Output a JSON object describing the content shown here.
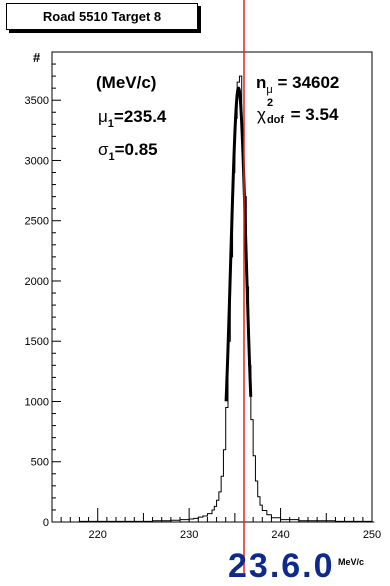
{
  "title_box": "Road 5510 Target 8",
  "ylabel": "#",
  "xlabel": "MeV/c",
  "annotations": {
    "units": "(MeV/c)",
    "mu_label": "μ",
    "mu_sub": "1",
    "mu_value": "=235.4",
    "sigma_label": "σ",
    "sigma_sub": "1",
    "sigma_value": "=0.85",
    "n_label": "n",
    "n_sub": "μ",
    "n_value": " = 34602",
    "chi_label": "χ",
    "chi_sup": "2",
    "chi_sub": "dof",
    "chi_value": " = 3.54"
  },
  "bottom_text": "23.6.0",
  "colors": {
    "histogram": "#000000",
    "marker": "#e8201e",
    "overflow_text": "#0d2a8c"
  },
  "chart_data": {
    "type": "histogram",
    "x_range": [
      215,
      250
    ],
    "y_range": [
      0,
      3900
    ],
    "x_ticks": [
      220,
      230,
      240,
      250
    ],
    "y_ticks": [
      0,
      500,
      1000,
      1500,
      2000,
      2500,
      3000,
      3500
    ],
    "xlabel": "MeV/c",
    "ylabel": "#",
    "vertical_marker_x": 236,
    "bin_width": 0.25,
    "bins": [
      {
        "x": 215.0,
        "y": 0
      },
      {
        "x": 218.0,
        "y": 5
      },
      {
        "x": 222.0,
        "y": 5
      },
      {
        "x": 226.0,
        "y": 10
      },
      {
        "x": 228.0,
        "y": 15
      },
      {
        "x": 229.0,
        "y": 20
      },
      {
        "x": 230.0,
        "y": 25
      },
      {
        "x": 230.5,
        "y": 30
      },
      {
        "x": 231.0,
        "y": 40
      },
      {
        "x": 231.5,
        "y": 50
      },
      {
        "x": 232.0,
        "y": 70
      },
      {
        "x": 232.5,
        "y": 100
      },
      {
        "x": 232.75,
        "y": 130
      },
      {
        "x": 233.0,
        "y": 180
      },
      {
        "x": 233.25,
        "y": 250
      },
      {
        "x": 233.5,
        "y": 380
      },
      {
        "x": 233.75,
        "y": 600
      },
      {
        "x": 234.0,
        "y": 950
      },
      {
        "x": 234.25,
        "y": 1500
      },
      {
        "x": 234.5,
        "y": 2200
      },
      {
        "x": 234.75,
        "y": 2900
      },
      {
        "x": 235.0,
        "y": 3350
      },
      {
        "x": 235.25,
        "y": 3650
      },
      {
        "x": 235.5,
        "y": 3700
      },
      {
        "x": 235.75,
        "y": 3300
      },
      {
        "x": 236.0,
        "y": 2700
      },
      {
        "x": 236.25,
        "y": 1950
      },
      {
        "x": 236.5,
        "y": 1300
      },
      {
        "x": 236.75,
        "y": 850
      },
      {
        "x": 237.0,
        "y": 550
      },
      {
        "x": 237.25,
        "y": 340
      },
      {
        "x": 237.5,
        "y": 210
      },
      {
        "x": 237.75,
        "y": 140
      },
      {
        "x": 238.0,
        "y": 95
      },
      {
        "x": 238.5,
        "y": 60
      },
      {
        "x": 239.0,
        "y": 35
      },
      {
        "x": 240.0,
        "y": 20
      },
      {
        "x": 242.0,
        "y": 10
      },
      {
        "x": 246.0,
        "y": 5
      },
      {
        "x": 250.0,
        "y": 0
      }
    ],
    "fit": {
      "mean": 235.4,
      "sigma": 0.85,
      "amplitude": 3600
    }
  }
}
